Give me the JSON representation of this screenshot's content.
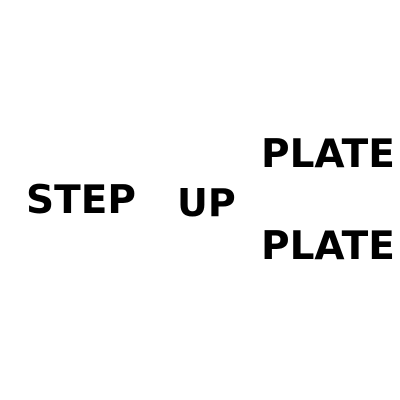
{
  "words": {
    "step": "STEP",
    "up": "UP",
    "plate_top": "PLATE",
    "plate_bottom": "PLATE"
  },
  "colors": {
    "text": "#000000",
    "background": "#ffffff"
  }
}
